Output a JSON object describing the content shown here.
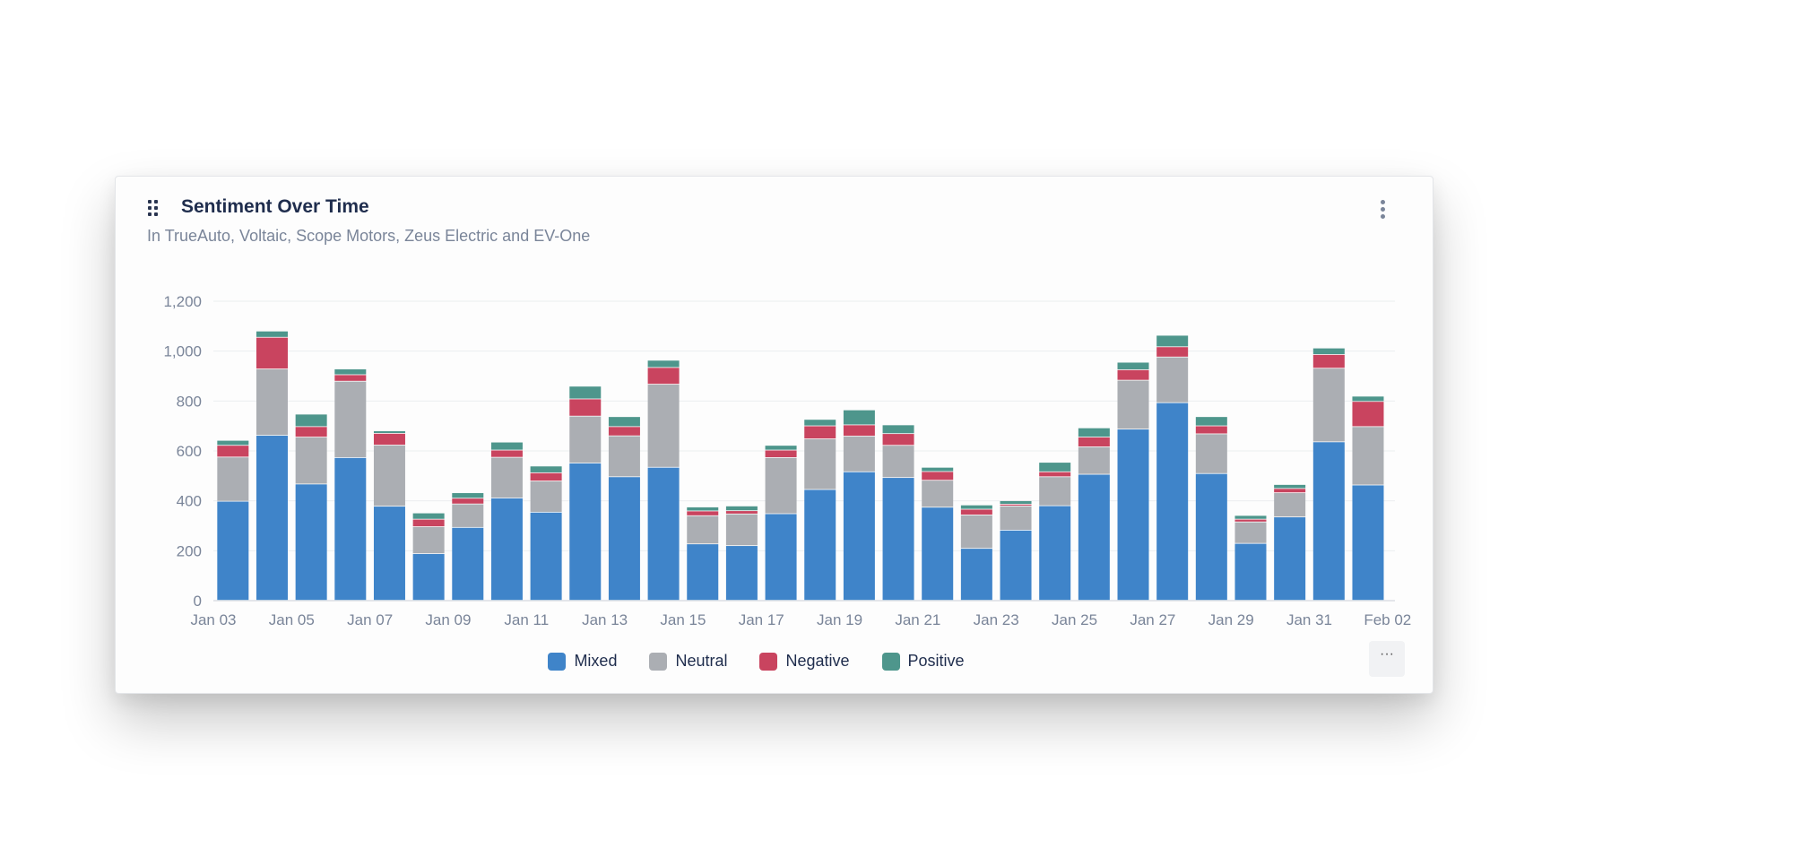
{
  "card": {
    "title": "Sentiment Over Time",
    "subtitle": "In TrueAuto, Voltaic, Scope Motors, Zeus Electric and EV-One",
    "more_label": "···"
  },
  "chart_data": {
    "type": "bar",
    "stacked": true,
    "title": "Sentiment Over Time",
    "xlabel": "",
    "ylabel": "",
    "ylim": [
      0,
      1200
    ],
    "yticks": [
      0,
      200,
      400,
      600,
      800,
      1000,
      1200
    ],
    "ytick_labels": [
      "0",
      "200",
      "400",
      "600",
      "800",
      "1,000",
      "1,200"
    ],
    "xtick_labels": [
      "Jan 03",
      "Jan 05",
      "Jan 07",
      "Jan 09",
      "Jan 11",
      "Jan 13",
      "Jan 15",
      "Jan 17",
      "Jan 19",
      "Jan 21",
      "Jan 23",
      "Jan 25",
      "Jan 27",
      "Jan 29",
      "Jan 31",
      "Feb 02"
    ],
    "categories": [
      "Jan 03",
      "Jan 04",
      "Jan 05",
      "Jan 06",
      "Jan 07",
      "Jan 08",
      "Jan 09",
      "Jan 10",
      "Jan 11",
      "Jan 12",
      "Jan 13",
      "Jan 14",
      "Jan 15",
      "Jan 16",
      "Jan 17",
      "Jan 18",
      "Jan 19",
      "Jan 20",
      "Jan 21",
      "Jan 22",
      "Jan 23",
      "Jan 24",
      "Jan 25",
      "Jan 26",
      "Jan 27",
      "Jan 28",
      "Jan 29",
      "Jan 30",
      "Jan 31",
      "Feb 01"
    ],
    "grid": true,
    "legend_position": "bottom-center",
    "series": [
      {
        "name": "Mixed",
        "color": "#3f84c9",
        "values": [
          397,
          661,
          466,
          572,
          377,
          187,
          292,
          410,
          353,
          550,
          495,
          533,
          226,
          219,
          347,
          444,
          515,
          492,
          373,
          208,
          281,
          379,
          505,
          686,
          792,
          508,
          228,
          334,
          635,
          462
        ]
      },
      {
        "name": "Neutral",
        "color": "#abaeb3",
        "values": [
          177,
          266,
          188,
          306,
          245,
          108,
          94,
          163,
          125,
          188,
          164,
          333,
          113,
          127,
          225,
          203,
          143,
          129,
          108,
          134,
          97,
          116,
          110,
          196,
          183,
          159,
          86,
          97,
          295,
          234
        ]
      },
      {
        "name": "Negative",
        "color": "#c9445f",
        "values": [
          47,
          127,
          42,
          26,
          47,
          30,
          23,
          29,
          33,
          69,
          37,
          67,
          19,
          13,
          30,
          52,
          45,
          47,
          35,
          23,
          7,
          20,
          39,
          42,
          41,
          32,
          11,
          17,
          55,
          101
        ]
      },
      {
        "name": "Positive",
        "color": "#4e968c",
        "values": [
          20,
          25,
          50,
          23,
          10,
          25,
          22,
          32,
          27,
          51,
          40,
          29,
          16,
          19,
          19,
          26,
          60,
          35,
          17,
          17,
          14,
          38,
          37,
          30,
          46,
          37,
          15,
          16,
          26,
          21
        ]
      }
    ]
  }
}
